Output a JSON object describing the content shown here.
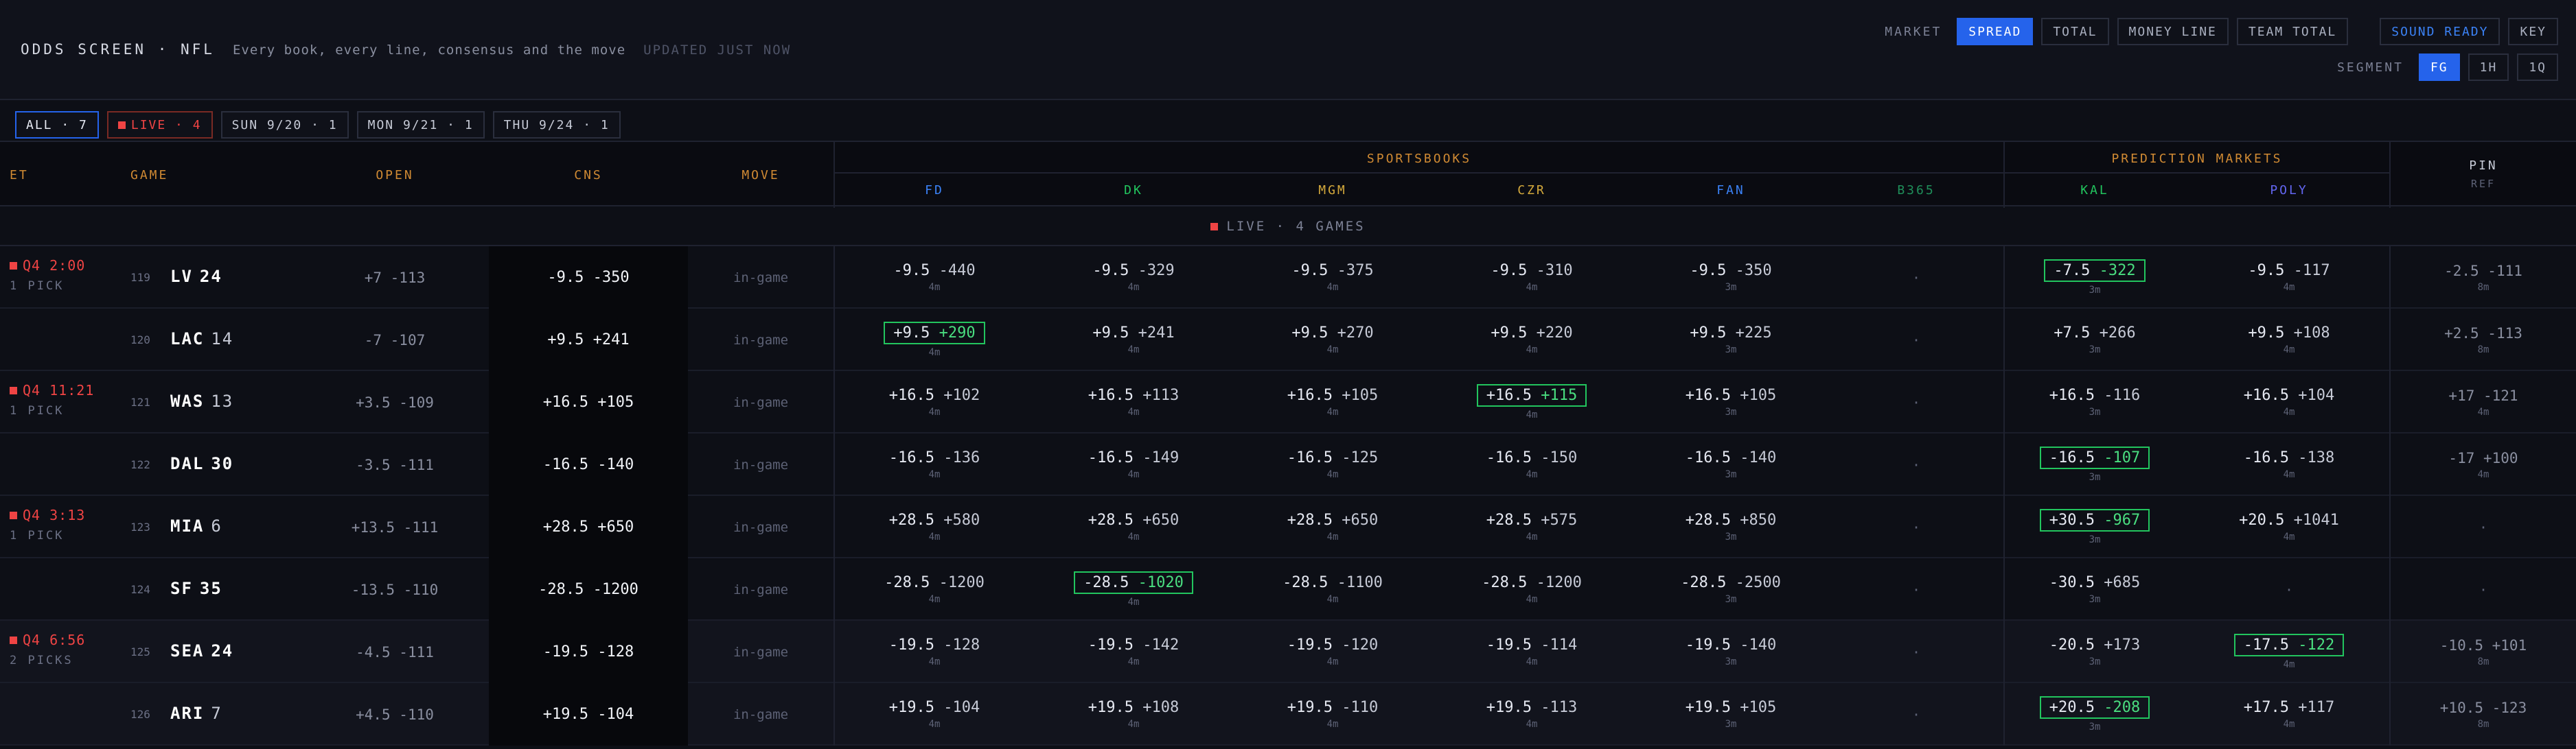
{
  "header": {
    "title": "ODDS SCREEN · NFL",
    "subtitle": "Every book, every line, consensus and the move",
    "updated": "UPDATED JUST NOW",
    "market_label": "MARKET",
    "markets": [
      "SPREAD",
      "TOTAL",
      "MONEY LINE",
      "TEAM TOTAL"
    ],
    "sound": "SOUND READY",
    "key": "KEY",
    "segment_label": "SEGMENT",
    "segments": [
      "FG",
      "1H",
      "1Q"
    ]
  },
  "filters": [
    "ALL · 7",
    "LIVE · 4",
    "SUN 9/20 · 1",
    "MON 9/21 · 1",
    "THU 9/24 · 1"
  ],
  "columns": {
    "et": "ET",
    "game": "GAME",
    "open": "OPEN",
    "cns": "CNS",
    "move": "MOVE",
    "sportsbooks": "SPORTSBOOKS",
    "prediction": "PREDICTION MARKETS",
    "pin": "PIN",
    "ref": "REF",
    "books": [
      {
        "name": "FD",
        "color": "#3b82f6"
      },
      {
        "name": "DK",
        "color": "#22c55e"
      },
      {
        "name": "MGM",
        "color": "#d4a93c"
      },
      {
        "name": "CZR",
        "color": "#d4a93c"
      },
      {
        "name": "FAN",
        "color": "#3b82f6"
      },
      {
        "name": "B365",
        "color": "#1f8f5a"
      },
      {
        "name": "KAL",
        "color": "#22c55e"
      },
      {
        "name": "POLY",
        "color": "#6366f1"
      }
    ]
  },
  "live_banner": "LIVE · 4 GAMES",
  "rows": [
    {
      "et": "Q4 2:00",
      "picks": "1 PICK",
      "rot": "119",
      "team": "LV",
      "score": "24",
      "win": true,
      "open": "+7 -113",
      "cns": "-9.5 -350",
      "move": "in-game",
      "books": [
        [
          "-9.5",
          "-440",
          "4m"
        ],
        [
          "-9.5",
          "-329",
          "4m"
        ],
        [
          "-9.5",
          "-375",
          "4m"
        ],
        [
          "-9.5",
          "-310",
          "4m"
        ],
        [
          "-9.5",
          "-350",
          "3m"
        ],
        [
          "·",
          "",
          ""
        ],
        [
          "-7.5",
          "-322",
          "3m"
        ],
        [
          "-9.5",
          "-117",
          "4m"
        ]
      ],
      "best": 6,
      "pin": [
        "-2.5 -111",
        "8m"
      ]
    },
    {
      "et": "",
      "picks": "",
      "rot": "120",
      "team": "LAC",
      "score": "14",
      "win": false,
      "open": "-7 -107",
      "cns": "+9.5 +241",
      "move": "in-game",
      "books": [
        [
          "+9.5",
          "+290",
          "4m"
        ],
        [
          "+9.5",
          "+241",
          "4m"
        ],
        [
          "+9.5",
          "+270",
          "4m"
        ],
        [
          "+9.5",
          "+220",
          "4m"
        ],
        [
          "+9.5",
          "+225",
          "3m"
        ],
        [
          "·",
          "",
          ""
        ],
        [
          "+7.5",
          "+266",
          "3m"
        ],
        [
          "+9.5",
          "+108",
          "4m"
        ]
      ],
      "best": 0,
      "pin": [
        "+2.5 -113",
        "8m"
      ]
    },
    {
      "et": "Q4 11:21",
      "picks": "1 PICK",
      "rot": "121",
      "team": "WAS",
      "score": "13",
      "win": false,
      "open": "+3.5 -109",
      "cns": "+16.5 +105",
      "move": "in-game",
      "books": [
        [
          "+16.5",
          "+102",
          "4m"
        ],
        [
          "+16.5",
          "+113",
          "4m"
        ],
        [
          "+16.5",
          "+105",
          "4m"
        ],
        [
          "+16.5",
          "+115",
          "4m"
        ],
        [
          "+16.5",
          "+105",
          "3m"
        ],
        [
          "·",
          "",
          ""
        ],
        [
          "+16.5",
          "-116",
          "3m"
        ],
        [
          "+16.5",
          "+104",
          "4m"
        ]
      ],
      "best": 3,
      "pin": [
        "+17 -121",
        "4m"
      ]
    },
    {
      "et": "",
      "picks": "",
      "rot": "122",
      "team": "DAL",
      "score": "30",
      "win": true,
      "open": "-3.5 -111",
      "cns": "-16.5 -140",
      "move": "in-game",
      "books": [
        [
          "-16.5",
          "-136",
          "4m"
        ],
        [
          "-16.5",
          "-149",
          "4m"
        ],
        [
          "-16.5",
          "-125",
          "4m"
        ],
        [
          "-16.5",
          "-150",
          "4m"
        ],
        [
          "-16.5",
          "-140",
          "3m"
        ],
        [
          "·",
          "",
          ""
        ],
        [
          "-16.5",
          "-107",
          "3m"
        ],
        [
          "-16.5",
          "-138",
          "4m"
        ]
      ],
      "best": 6,
      "pin": [
        "-17 +100",
        "4m"
      ]
    },
    {
      "et": "Q4 3:13",
      "picks": "1 PICK",
      "rot": "123",
      "team": "MIA",
      "score": "6",
      "win": false,
      "open": "+13.5 -111",
      "cns": "+28.5 +650",
      "move": "in-game",
      "books": [
        [
          "+28.5",
          "+580",
          "4m"
        ],
        [
          "+28.5",
          "+650",
          "4m"
        ],
        [
          "+28.5",
          "+650",
          "4m"
        ],
        [
          "+28.5",
          "+575",
          "4m"
        ],
        [
          "+28.5",
          "+850",
          "3m"
        ],
        [
          "·",
          "",
          ""
        ],
        [
          "+30.5",
          "-967",
          "3m"
        ],
        [
          "+20.5",
          "+1041",
          "4m"
        ]
      ],
      "best": 6,
      "pin": [
        "·",
        ""
      ]
    },
    {
      "et": "",
      "picks": "",
      "rot": "124",
      "team": "SF",
      "score": "35",
      "win": true,
      "open": "-13.5 -110",
      "cns": "-28.5 -1200",
      "move": "in-game",
      "books": [
        [
          "-28.5",
          "-1200",
          "4m"
        ],
        [
          "-28.5",
          "-1020",
          "4m"
        ],
        [
          "-28.5",
          "-1100",
          "4m"
        ],
        [
          "-28.5",
          "-1200",
          "4m"
        ],
        [
          "-28.5",
          "-2500",
          "3m"
        ],
        [
          "·",
          "",
          ""
        ],
        [
          "-30.5",
          "+685",
          "3m"
        ],
        [
          "·",
          "",
          ""
        ]
      ],
      "best": 1,
      "pin": [
        "·",
        ""
      ]
    },
    {
      "et": "Q4 6:56",
      "picks": "2 PICKS",
      "rot": "125",
      "team": "SEA",
      "score": "24",
      "win": true,
      "open": "-4.5 -111",
      "cns": "-19.5 -128",
      "move": "in-game",
      "books": [
        [
          "-19.5",
          "-128",
          "4m"
        ],
        [
          "-19.5",
          "-142",
          "4m"
        ],
        [
          "-19.5",
          "-120",
          "4m"
        ],
        [
          "-19.5",
          "-114",
          "4m"
        ],
        [
          "-19.5",
          "-140",
          "3m"
        ],
        [
          "·",
          "",
          ""
        ],
        [
          "-20.5",
          "+173",
          "3m"
        ],
        [
          "-17.5",
          "-122",
          "4m"
        ]
      ],
      "best": 7,
      "pin": [
        "-10.5 +101",
        "8m"
      ]
    },
    {
      "et": "",
      "picks": "",
      "rot": "126",
      "team": "ARI",
      "score": "7",
      "win": false,
      "open": "+4.5 -110",
      "cns": "+19.5 -104",
      "move": "in-game",
      "books": [
        [
          "+19.5",
          "-104",
          "4m"
        ],
        [
          "+19.5",
          "+108",
          "4m"
        ],
        [
          "+19.5",
          "-110",
          "4m"
        ],
        [
          "+19.5",
          "-113",
          "4m"
        ],
        [
          "+19.5",
          "+105",
          "3m"
        ],
        [
          "·",
          "",
          ""
        ],
        [
          "+20.5",
          "-208",
          "3m"
        ],
        [
          "+17.5",
          "+117",
          "4m"
        ]
      ],
      "best": 6,
      "pin": [
        "+10.5 -123",
        "8m"
      ]
    }
  ]
}
